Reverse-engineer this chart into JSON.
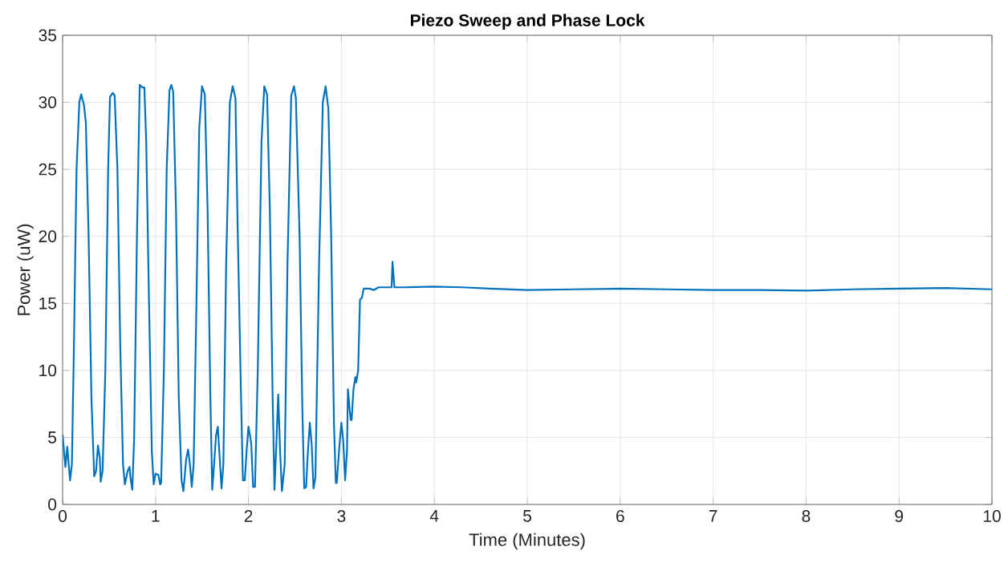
{
  "chart_data": {
    "type": "line",
    "title": "Piezo Sweep and Phase Lock",
    "xlabel": "Time (Minutes)",
    "ylabel": "Power (uW)",
    "xlim": [
      0,
      10
    ],
    "ylim": [
      0,
      35
    ],
    "xticks": [
      0,
      1,
      2,
      3,
      4,
      5,
      6,
      7,
      8,
      9,
      10
    ],
    "yticks": [
      0,
      5,
      10,
      15,
      20,
      25,
      30,
      35
    ],
    "grid": true,
    "series": [
      {
        "color": "#0072bd",
        "x": [
          0,
          0.03,
          0.05,
          0.08,
          0.1,
          0.12,
          0.15,
          0.18,
          0.2,
          0.23,
          0.25,
          0.28,
          0.31,
          0.34,
          0.36,
          0.38,
          0.4,
          0.41,
          0.43,
          0.46,
          0.49,
          0.51,
          0.54,
          0.56,
          0.59,
          0.62,
          0.65,
          0.67,
          0.7,
          0.72,
          0.73,
          0.75,
          0.77,
          0.8,
          0.83,
          0.86,
          0.88,
          0.9,
          0.93,
          0.96,
          0.98,
          1.0,
          1.03,
          1.05,
          1.06,
          1.09,
          1.12,
          1.15,
          1.17,
          1.19,
          1.22,
          1.25,
          1.28,
          1.3,
          1.33,
          1.35,
          1.37,
          1.39,
          1.41,
          1.44,
          1.47,
          1.5,
          1.53,
          1.56,
          1.59,
          1.61,
          1.63,
          1.65,
          1.67,
          1.69,
          1.71,
          1.73,
          1.76,
          1.8,
          1.83,
          1.86,
          1.88,
          1.92,
          1.94,
          1.96,
          1.98,
          2.0,
          2.02,
          2.03,
          2.05,
          2.07,
          2.1,
          2.14,
          2.17,
          2.2,
          2.23,
          2.26,
          2.28,
          2.3,
          2.32,
          2.34,
          2.36,
          2.39,
          2.42,
          2.46,
          2.49,
          2.51,
          2.55,
          2.58,
          2.6,
          2.62,
          2.64,
          2.66,
          2.68,
          2.7,
          2.72,
          2.76,
          2.8,
          2.83,
          2.86,
          2.89,
          2.92,
          2.94,
          2.95,
          2.98,
          3.0,
          3.02,
          3.04,
          3.06,
          3.07,
          3.09,
          3.1,
          3.11,
          3.13,
          3.15,
          3.16,
          3.18,
          3.2,
          3.22,
          3.24,
          3.3,
          3.35,
          3.4,
          3.5,
          3.54,
          3.55,
          3.57,
          3.7,
          4.0,
          4.3,
          4.6,
          5.0,
          5.5,
          6.0,
          6.5,
          7.0,
          7.5,
          8.0,
          8.5,
          9.0,
          9.5,
          10
        ],
        "values": [
          5.2,
          2.8,
          4.3,
          1.8,
          3.0,
          11,
          25,
          30,
          30.6,
          29.8,
          28.5,
          20,
          8,
          2.1,
          2.5,
          4.4,
          3.5,
          1.7,
          2.5,
          10,
          25,
          30.4,
          30.7,
          30.5,
          25,
          12,
          3,
          1.5,
          2.5,
          2.8,
          2,
          1.1,
          5,
          20,
          31.3,
          31.1,
          31.1,
          27,
          15,
          4,
          1.5,
          2.3,
          2.2,
          1.5,
          1.6,
          10,
          25,
          30.9,
          31.3,
          30.8,
          22,
          8,
          1.8,
          1.0,
          3.4,
          4.1,
          3,
          1.3,
          3,
          15,
          28,
          31.2,
          30.6,
          22,
          8,
          1.1,
          3,
          5.1,
          5.8,
          3.5,
          1.2,
          3,
          18,
          30,
          31.2,
          30.3,
          22,
          8,
          1.8,
          1.8,
          4,
          5.8,
          5,
          4.5,
          1.3,
          1.3,
          10,
          27,
          31.2,
          30.6,
          22,
          8,
          1.1,
          4.5,
          8.2,
          4,
          1,
          3,
          18,
          30.5,
          31.2,
          30.3,
          20,
          7,
          1.2,
          1.3,
          4,
          6.1,
          4.5,
          1.2,
          2,
          18,
          30,
          31.2,
          29.5,
          20,
          6,
          1.6,
          1.6,
          4.5,
          6.1,
          4.7,
          1.8,
          4,
          8.6,
          7,
          6.3,
          6.3,
          8.6,
          9.5,
          9.1,
          10,
          15.3,
          15.4,
          16.1,
          16.1,
          16.0,
          16.2,
          16.2,
          16.2,
          18.1,
          16.2,
          16.2,
          16.25,
          16.2,
          16.1,
          16.0,
          16.05,
          16.1,
          16.05,
          16.0,
          16.0,
          15.95,
          16.05,
          16.1,
          16.15,
          16.05
        ]
      }
    ]
  }
}
